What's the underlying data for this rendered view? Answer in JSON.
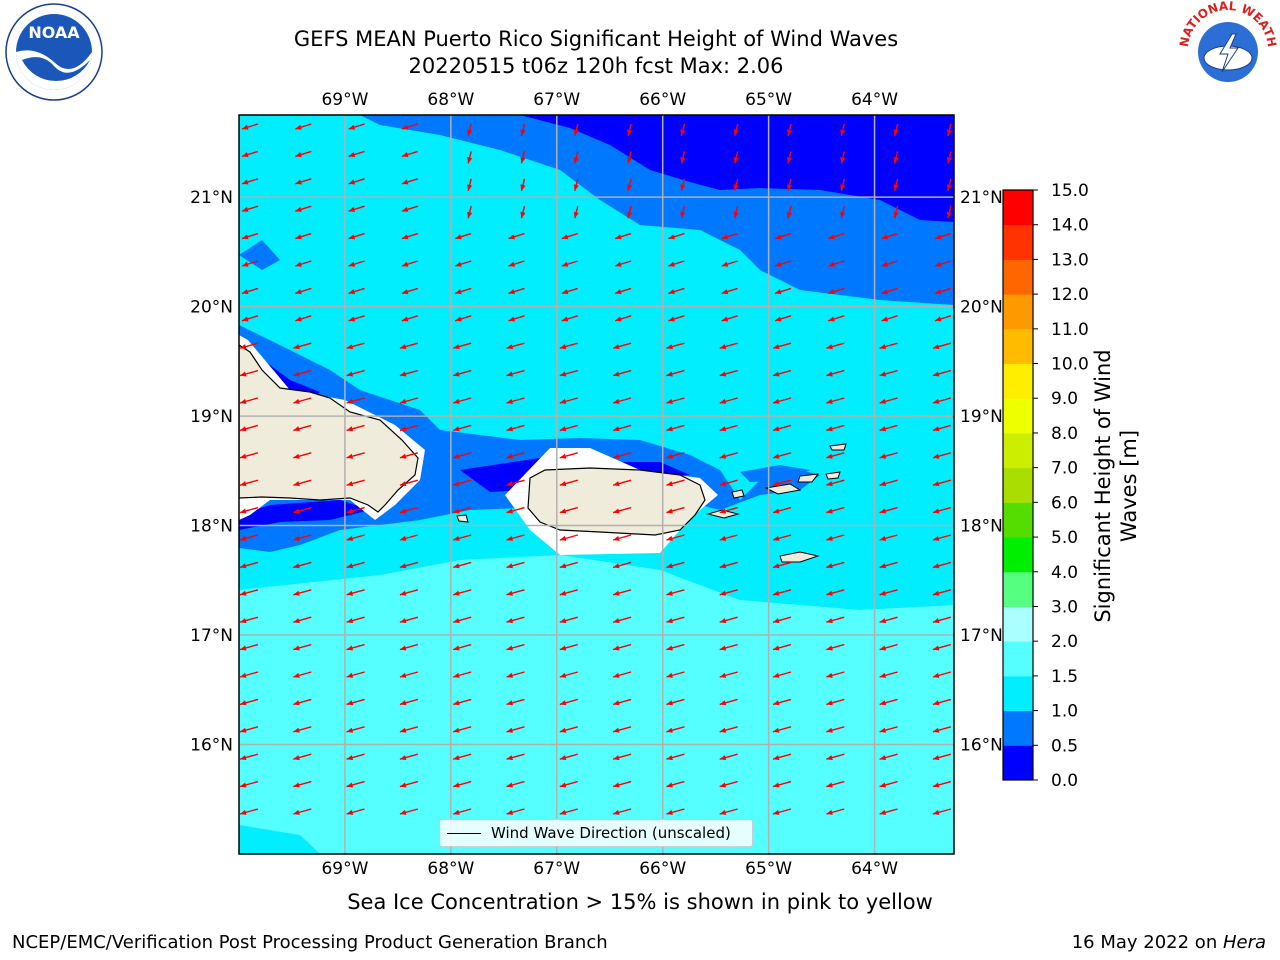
{
  "title": {
    "line1": "GEFS MEAN Puerto Rico Significant Height of Wind Waves",
    "line2": "20220515 t06z 120h fcst   Max: 2.06"
  },
  "map": {
    "lon_labels": [
      "69°W",
      "68°W",
      "67°W",
      "66°W",
      "65°W",
      "64°W"
    ],
    "lat_labels": [
      "21°N",
      "20°N",
      "19°N",
      "18°N",
      "17°N",
      "16°N"
    ],
    "lon_range": [
      -70,
      -63.25
    ],
    "lat_range": [
      15,
      21.75
    ],
    "grid": true
  },
  "colorbar": {
    "label": "Significant Height of Wind Waves [m]",
    "ticks": [
      "0.0",
      "0.5",
      "1.0",
      "1.5",
      "2.0",
      "3.0",
      "4.0",
      "5.0",
      "6.0",
      "7.0",
      "8.0",
      "9.0",
      "10.0",
      "11.0",
      "12.0",
      "13.0",
      "14.0",
      "15.0"
    ],
    "colors": [
      "#0000ff",
      "#0078ff",
      "#00eeff",
      "#55ffff",
      "#aaffff",
      "#55ff80",
      "#00ee00",
      "#55dd00",
      "#aadd00",
      "#ccee00",
      "#eeff00",
      "#ffee00",
      "#ffbb00",
      "#ff9900",
      "#ff6600",
      "#ff3300",
      "#ff0000"
    ]
  },
  "legend": {
    "label": "Wind Wave Direction (unscaled)"
  },
  "footnote": "Sea Ice Concentration > 15% is shown in pink to yellow",
  "credit": "NCEP/EMC/Verification Post Processing Product Generation Branch",
  "date": {
    "text": "16 May 2022 on ",
    "host": "Hera"
  },
  "logos": {
    "left": "NOAA",
    "right": "NATIONAL WEATHER SERVICE"
  },
  "colors": {
    "land": "#efecdb",
    "arrow": "#ff0000",
    "grid": "#b0b0b0"
  }
}
